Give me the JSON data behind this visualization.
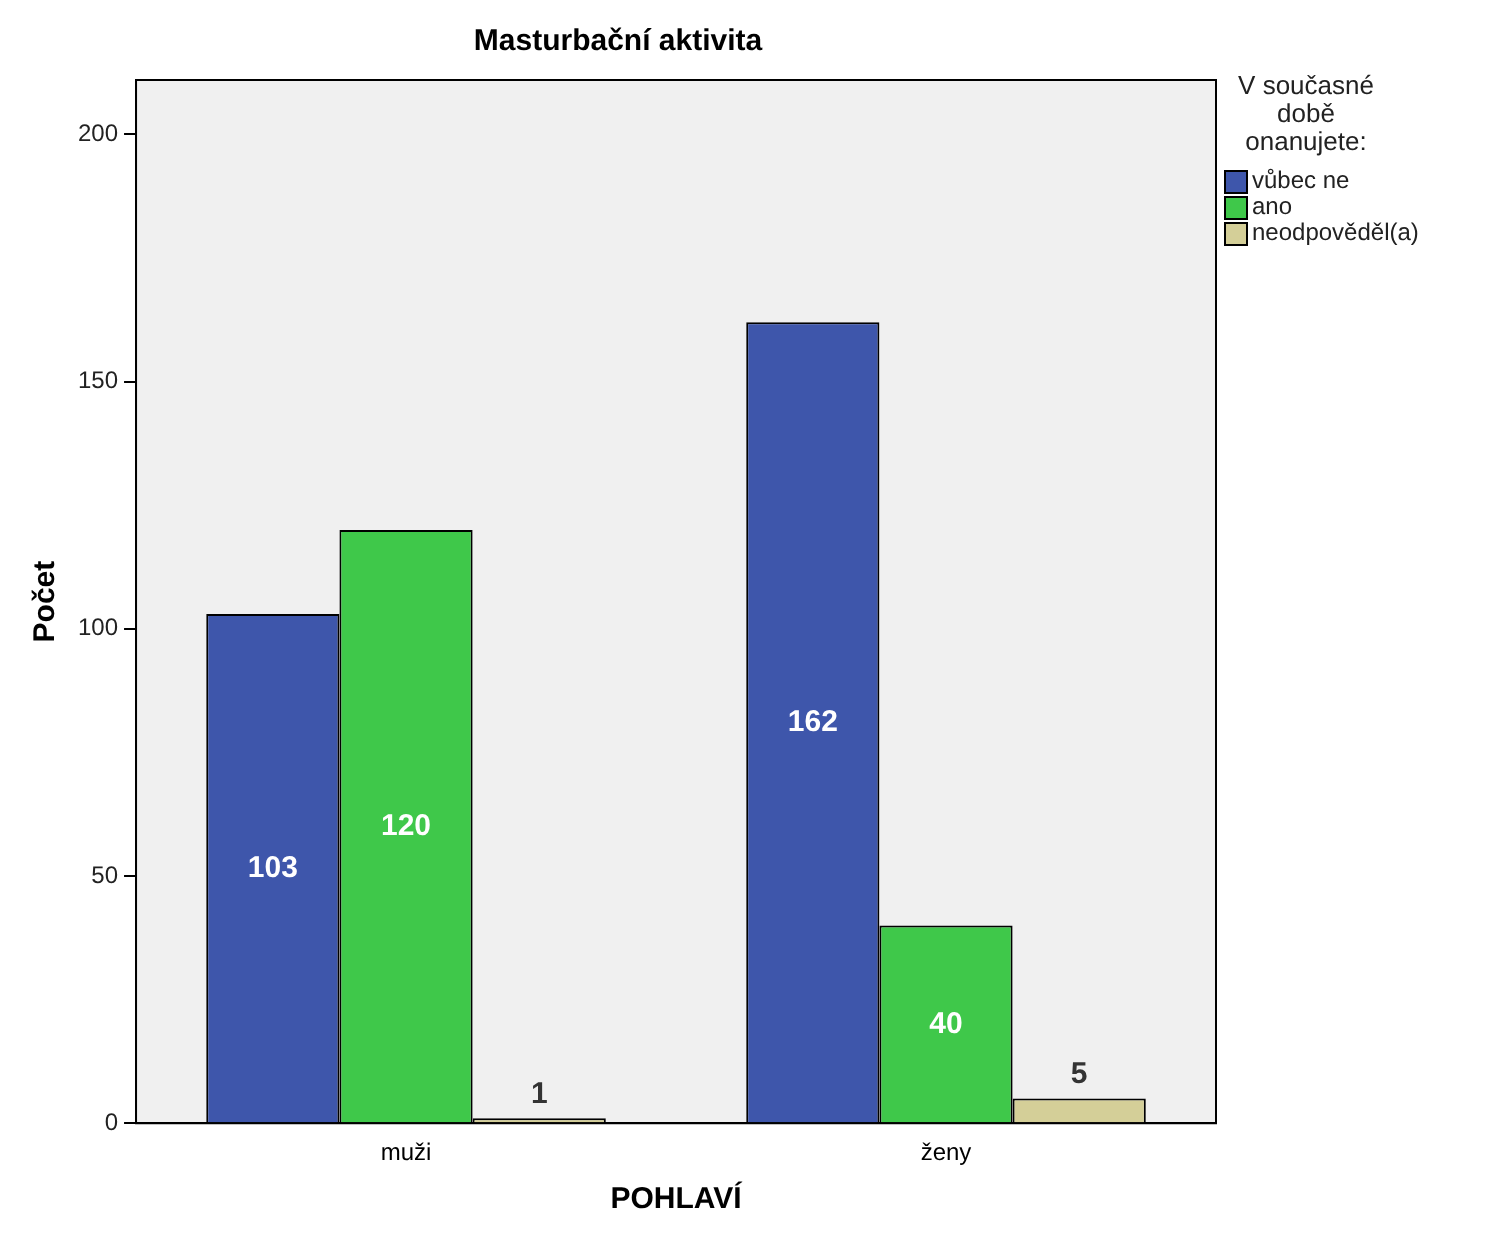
{
  "chart_data": {
    "type": "bar",
    "title": "Masturbační aktivita",
    "xlabel": "POHLAVÍ",
    "ylabel": "Počet",
    "legend_title": "V současné době onanujete:",
    "categories": [
      "muži",
      "ženy"
    ],
    "series": [
      {
        "name": "vůbec ne",
        "color": "#3e56ab",
        "values": [
          103,
          162
        ]
      },
      {
        "name": "ano",
        "color": "#3fc84a",
        "values": [
          120,
          40
        ]
      },
      {
        "name": "neodpověděl(a)",
        "color": "#d4cf98",
        "values": [
          1,
          5
        ]
      }
    ],
    "ylim": [
      0,
      211
    ],
    "yticks": [
      0,
      50,
      100,
      150,
      200
    ],
    "grid": false,
    "legend": "top right",
    "data_labels": true
  }
}
